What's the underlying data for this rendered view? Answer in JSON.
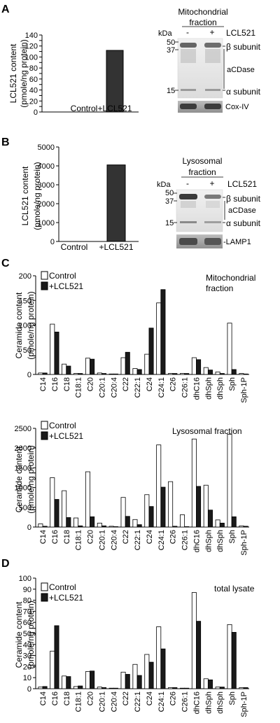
{
  "panels": {
    "A": "A",
    "B": "B",
    "C": "C",
    "D": "D"
  },
  "blots": {
    "A": {
      "fraction": [
        "Mitochondrial",
        "fraction"
      ],
      "kda": "kDa",
      "minus": "-",
      "plus": "+",
      "treatment": "LCL521",
      "markers": [
        "50",
        "37",
        "15"
      ],
      "beta": "β subunit",
      "acdase": "aCDase",
      "alpha": "α subunit",
      "loading": "Cox-IV"
    },
    "B": {
      "fraction": [
        "Lysosomal",
        "fraction"
      ],
      "kda": "kDa",
      "minus": "-",
      "plus": "+",
      "treatment": "LCL521",
      "markers": [
        "50",
        "37",
        "15"
      ],
      "beta": "β subunit",
      "acdase": "aCDase",
      "alpha": "α subunit",
      "loading": "-LAMP1"
    }
  },
  "chart_data": [
    {
      "panel": "A",
      "type": "bar",
      "categories": [
        "Control",
        "+LCL521"
      ],
      "values": [
        0,
        112
      ],
      "ylabel": [
        "LCL521 content",
        "(pmole/ng protein)"
      ],
      "ylim": [
        0,
        140
      ],
      "yticks": [
        0,
        10,
        20,
        30,
        40,
        50,
        60,
        70,
        80,
        90,
        100,
        110,
        120,
        130,
        140
      ],
      "ytick_labels": [
        "0",
        "",
        "20",
        "",
        "40",
        "",
        "60",
        "",
        "80",
        "",
        "100",
        "",
        "120",
        "",
        "140"
      ]
    },
    {
      "panel": "B",
      "type": "bar",
      "categories": [
        "Control",
        "+LCL521"
      ],
      "values": [
        0,
        4050
      ],
      "ylabel": [
        "LCL521 content",
        "(pmole/ng protein)"
      ],
      "ylim": [
        0,
        5000
      ],
      "yticks": [
        0,
        1000,
        2000,
        3000,
        4000,
        5000
      ],
      "ytick_labels": [
        "0",
        "1000",
        "2000",
        "3000",
        "4000",
        "5000"
      ]
    },
    {
      "panel": "C",
      "type": "bar",
      "annotation": [
        "Mitochondrial",
        "fraction"
      ],
      "categories": [
        "C14",
        "C16",
        "C18",
        "C18:1",
        "C20",
        "C20:1",
        "C20:4",
        "C22",
        "C22:1",
        "C24",
        "C24:1",
        "C26",
        "C26:1",
        "dhC16",
        "dhSph",
        "dhSph",
        "Sph",
        "Sph-1P"
      ],
      "series": [
        {
          "name": "Control",
          "values": [
            3,
            102,
            21,
            2,
            33,
            3,
            1,
            34,
            12,
            41,
            145,
            2,
            2,
            34,
            14,
            5,
            104,
            2
          ]
        },
        {
          "name": "+LCL521",
          "values": [
            3,
            86,
            17,
            2,
            31,
            2,
            1,
            45,
            10,
            94,
            172,
            2,
            2,
            30,
            9,
            2,
            10,
            1
          ]
        }
      ],
      "ylabel": [
        "Ceramide content",
        "(pmole/ng protein)"
      ],
      "ylim": [
        0,
        200
      ],
      "yticks": [
        0,
        50,
        100,
        150,
        200
      ],
      "legend": "top-left"
    },
    {
      "panel": "C",
      "type": "bar",
      "annotation": [
        "Lysosomal fraction"
      ],
      "categories": [
        "C14",
        "C16",
        "C18",
        "C18:1",
        "C20",
        "C20:1",
        "C20:4",
        "C22",
        "C22:1",
        "C24",
        "C24:1",
        "C26",
        "C26:1",
        "dhC16",
        "dhSph",
        "dhSph",
        "Sph",
        "Sph-1P"
      ],
      "series": [
        {
          "name": "Control",
          "values": [
            80,
            1250,
            920,
            230,
            1400,
            100,
            20,
            750,
            190,
            820,
            2080,
            1150,
            310,
            2230,
            1060,
            180,
            2350,
            30
          ]
        },
        {
          "name": "+LCL521",
          "values": [
            20,
            700,
            240,
            30,
            260,
            30,
            10,
            270,
            60,
            520,
            1010,
            20,
            10,
            1030,
            430,
            100,
            260,
            20
          ]
        }
      ],
      "ylabel": [
        "Ceramide content",
        "(pmole/ng protein)"
      ],
      "ylim": [
        0,
        2500
      ],
      "yticks": [
        0,
        500,
        1000,
        1500,
        2000,
        2500
      ],
      "legend": "top-left"
    },
    {
      "panel": "D",
      "type": "bar",
      "annotation": [
        "total lysate"
      ],
      "categories": [
        "C14",
        "C16",
        "C18",
        "C18:1",
        "C20",
        "C20:1",
        "C20:4",
        "C22",
        "C22:1",
        "C24",
        "C24:1",
        "C26",
        "C26:1",
        "dhC16",
        "dhSph",
        "dhSph",
        "Sph",
        "Sph-1P"
      ],
      "series": [
        {
          "name": "Control",
          "values": [
            1.5,
            34,
            11.5,
            2,
            15.5,
            1.5,
            0.5,
            15,
            22,
            31,
            56,
            1,
            0.5,
            87,
            9,
            1.5,
            58,
            1
          ]
        },
        {
          "name": "+LCL521",
          "values": [
            2,
            57,
            11,
            2.5,
            16,
            1,
            0.5,
            13,
            12,
            24,
            36,
            1,
            0.5,
            61,
            8,
            1.5,
            51,
            1
          ]
        }
      ],
      "ylabel": [
        "Ceramide content",
        "(pmole/ng protein)"
      ],
      "ylim": [
        0,
        100
      ],
      "yticks": [
        0,
        10,
        20,
        30,
        40,
        50,
        60,
        70,
        80,
        90,
        100
      ],
      "legend": "top-left"
    }
  ]
}
